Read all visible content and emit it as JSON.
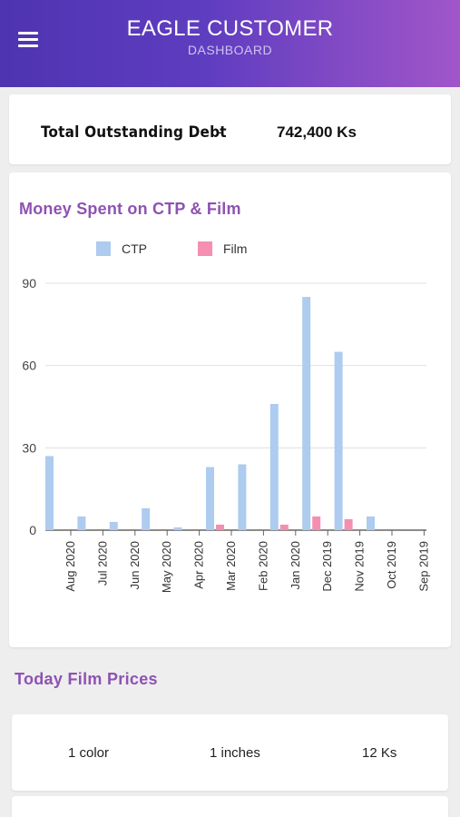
{
  "header": {
    "menu_icon": "hamburger-menu-icon",
    "title": "EAGLE CUSTOMER",
    "subtitle": "DASHBOARD",
    "gradient": [
      "#4e34b0",
      "#a156c9"
    ]
  },
  "debt": {
    "label": "Total Outstanding Debt",
    "separator": "-",
    "value": "742,400 Ks"
  },
  "chart_data": {
    "type": "bar",
    "title": "Money Spent on CTP & Film",
    "categories": [
      "Aug 2020",
      "Jul 2020",
      "Jun 2020",
      "May 2020",
      "Apr 2020",
      "Mar 2020",
      "Feb 2020",
      "Jan 2020",
      "Dec 2019",
      "Nov 2019",
      "Oct 2019",
      "Sep 2019"
    ],
    "series": [
      {
        "name": "CTP",
        "color": "#aecbf0",
        "values": [
          27,
          5,
          3,
          8,
          1,
          23,
          24,
          46,
          85,
          65,
          5,
          0
        ]
      },
      {
        "name": "Film",
        "color": "#f48fb1",
        "values": [
          0,
          0,
          0,
          0,
          0,
          2,
          0,
          2,
          5,
          4,
          0,
          0
        ]
      }
    ],
    "yticks": [
      0,
      30,
      60,
      90
    ],
    "ylim": [
      0,
      90
    ],
    "grid": true,
    "legend": "top"
  },
  "prices": {
    "title": "Today Film Prices",
    "rows": [
      {
        "color": "1 color",
        "size": "1 inches",
        "price": "12 Ks"
      }
    ]
  }
}
